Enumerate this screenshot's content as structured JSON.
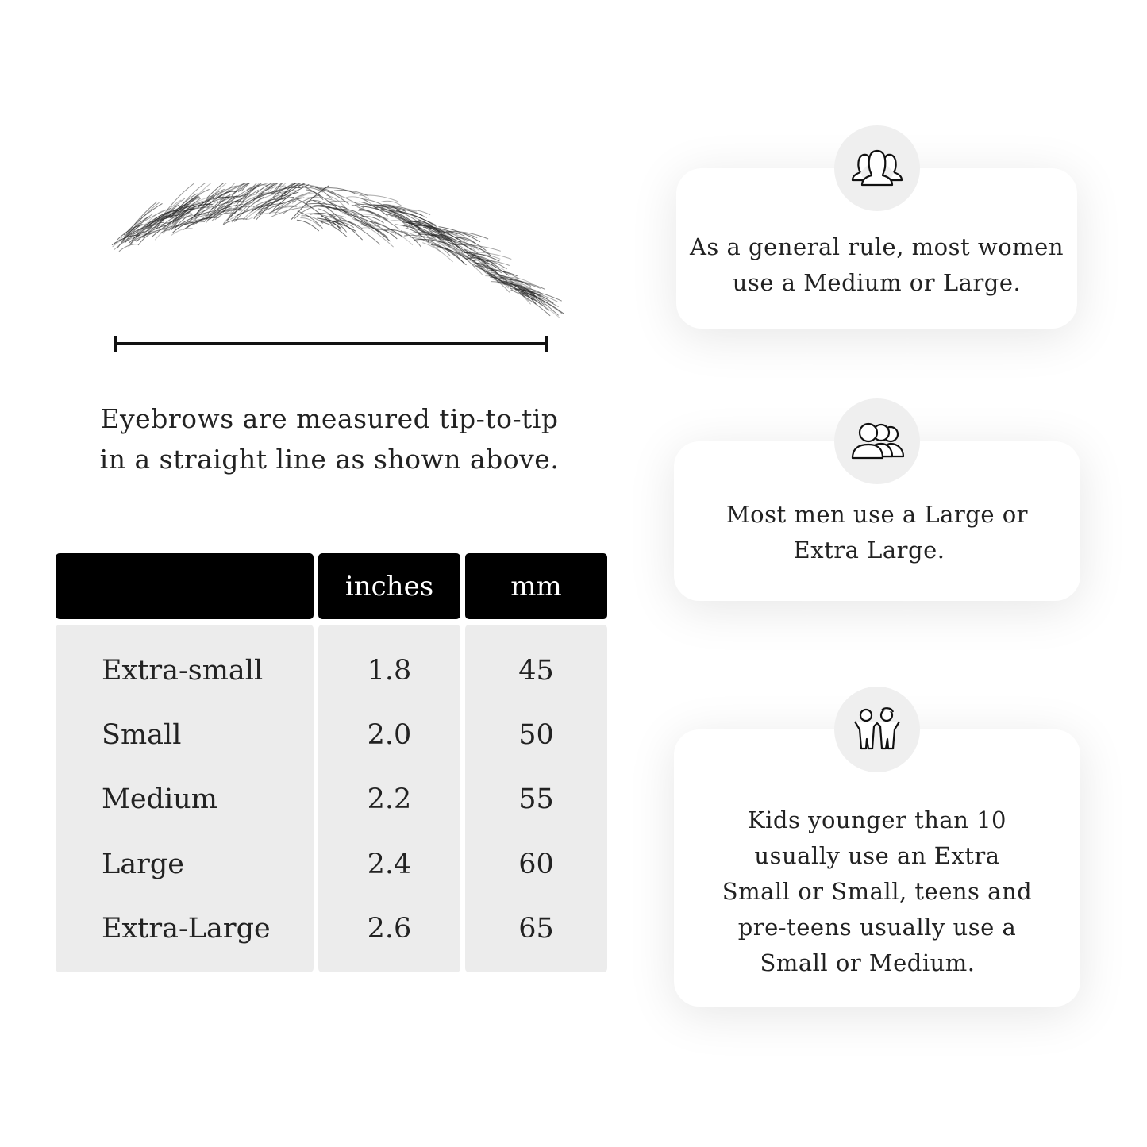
{
  "measure_note": {
    "line1": "Eyebrows are measured tip-to-tip",
    "line2": "in a straight line as shown above."
  },
  "size_table": {
    "headers": [
      "",
      "inches",
      "mm"
    ],
    "rows": [
      {
        "size": "Extra-small",
        "inches": "1.8",
        "mm": "45"
      },
      {
        "size": "Small",
        "inches": "2.0",
        "mm": "50"
      },
      {
        "size": "Medium",
        "inches": "2.2",
        "mm": "55"
      },
      {
        "size": "Large",
        "inches": "2.4",
        "mm": "60"
      },
      {
        "size": "Extra-Large",
        "inches": "2.6",
        "mm": "65"
      }
    ]
  },
  "cards": [
    {
      "icon": "women-group-icon",
      "line1": "As a general rule, most women",
      "line2": "use a Medium or Large."
    },
    {
      "icon": "men-group-icon",
      "line1": "Most men use a Large or",
      "line2": "Extra Large."
    },
    {
      "icon": "kids-icon",
      "lines": [
        "Kids younger than 10",
        "usually use an Extra",
        "Small or Small, teens and",
        "pre-teens usually use a",
        "Small or Medium."
      ]
    }
  ],
  "colors": {
    "header_bg": "#000000",
    "row_bg": "#ececec",
    "icon_circle": "#efefef"
  }
}
